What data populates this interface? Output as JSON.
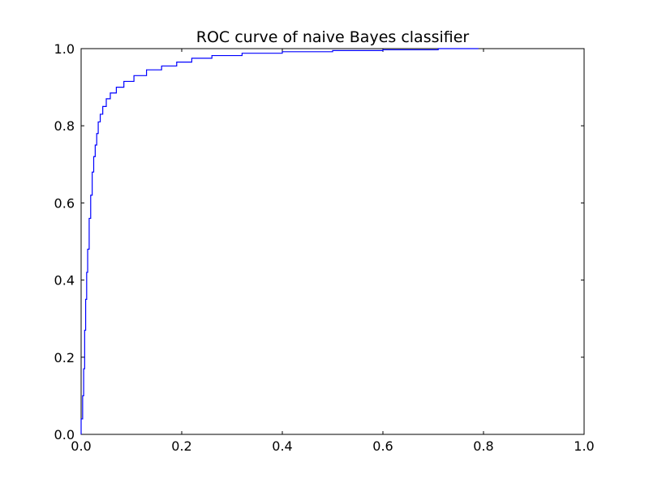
{
  "chart_data": {
    "type": "line",
    "title": "ROC curve of naive Bayes classifier",
    "xlabel": "",
    "ylabel": "",
    "xlim": [
      0.0,
      1.0
    ],
    "ylim": [
      0.0,
      1.0
    ],
    "xticks": [
      "0.0",
      "0.2",
      "0.4",
      "0.6",
      "0.8",
      "1.0"
    ],
    "yticks": [
      "0.0",
      "0.2",
      "0.4",
      "0.6",
      "0.8",
      "1.0"
    ],
    "grid": false,
    "legend": "none",
    "series": [
      {
        "color": "#0000ff",
        "step": true,
        "points": [
          [
            0.0,
            0.0
          ],
          [
            0.0,
            0.04
          ],
          [
            0.003,
            0.04
          ],
          [
            0.003,
            0.1
          ],
          [
            0.005,
            0.1
          ],
          [
            0.005,
            0.17
          ],
          [
            0.007,
            0.17
          ],
          [
            0.007,
            0.27
          ],
          [
            0.009,
            0.27
          ],
          [
            0.009,
            0.35
          ],
          [
            0.011,
            0.35
          ],
          [
            0.011,
            0.42
          ],
          [
            0.013,
            0.42
          ],
          [
            0.013,
            0.48
          ],
          [
            0.016,
            0.48
          ],
          [
            0.016,
            0.56
          ],
          [
            0.019,
            0.56
          ],
          [
            0.019,
            0.62
          ],
          [
            0.022,
            0.62
          ],
          [
            0.022,
            0.68
          ],
          [
            0.025,
            0.68
          ],
          [
            0.025,
            0.72
          ],
          [
            0.028,
            0.72
          ],
          [
            0.028,
            0.75
          ],
          [
            0.031,
            0.75
          ],
          [
            0.031,
            0.78
          ],
          [
            0.034,
            0.78
          ],
          [
            0.034,
            0.81
          ],
          [
            0.038,
            0.81
          ],
          [
            0.038,
            0.83
          ],
          [
            0.043,
            0.83
          ],
          [
            0.043,
            0.85
          ],
          [
            0.05,
            0.85
          ],
          [
            0.05,
            0.87
          ],
          [
            0.058,
            0.87
          ],
          [
            0.058,
            0.885
          ],
          [
            0.07,
            0.885
          ],
          [
            0.07,
            0.9
          ],
          [
            0.085,
            0.9
          ],
          [
            0.085,
            0.915
          ],
          [
            0.105,
            0.915
          ],
          [
            0.105,
            0.93
          ],
          [
            0.13,
            0.93
          ],
          [
            0.13,
            0.945
          ],
          [
            0.16,
            0.945
          ],
          [
            0.16,
            0.955
          ],
          [
            0.19,
            0.955
          ],
          [
            0.19,
            0.965
          ],
          [
            0.22,
            0.965
          ],
          [
            0.22,
            0.975
          ],
          [
            0.26,
            0.975
          ],
          [
            0.26,
            0.982
          ],
          [
            0.32,
            0.982
          ],
          [
            0.32,
            0.988
          ],
          [
            0.4,
            0.988
          ],
          [
            0.4,
            0.992
          ],
          [
            0.5,
            0.992
          ],
          [
            0.5,
            0.995
          ],
          [
            0.6,
            0.995
          ],
          [
            0.6,
            0.997
          ],
          [
            0.71,
            0.997
          ],
          [
            0.71,
            1.0
          ],
          [
            0.79,
            1.0
          ]
        ]
      }
    ]
  }
}
